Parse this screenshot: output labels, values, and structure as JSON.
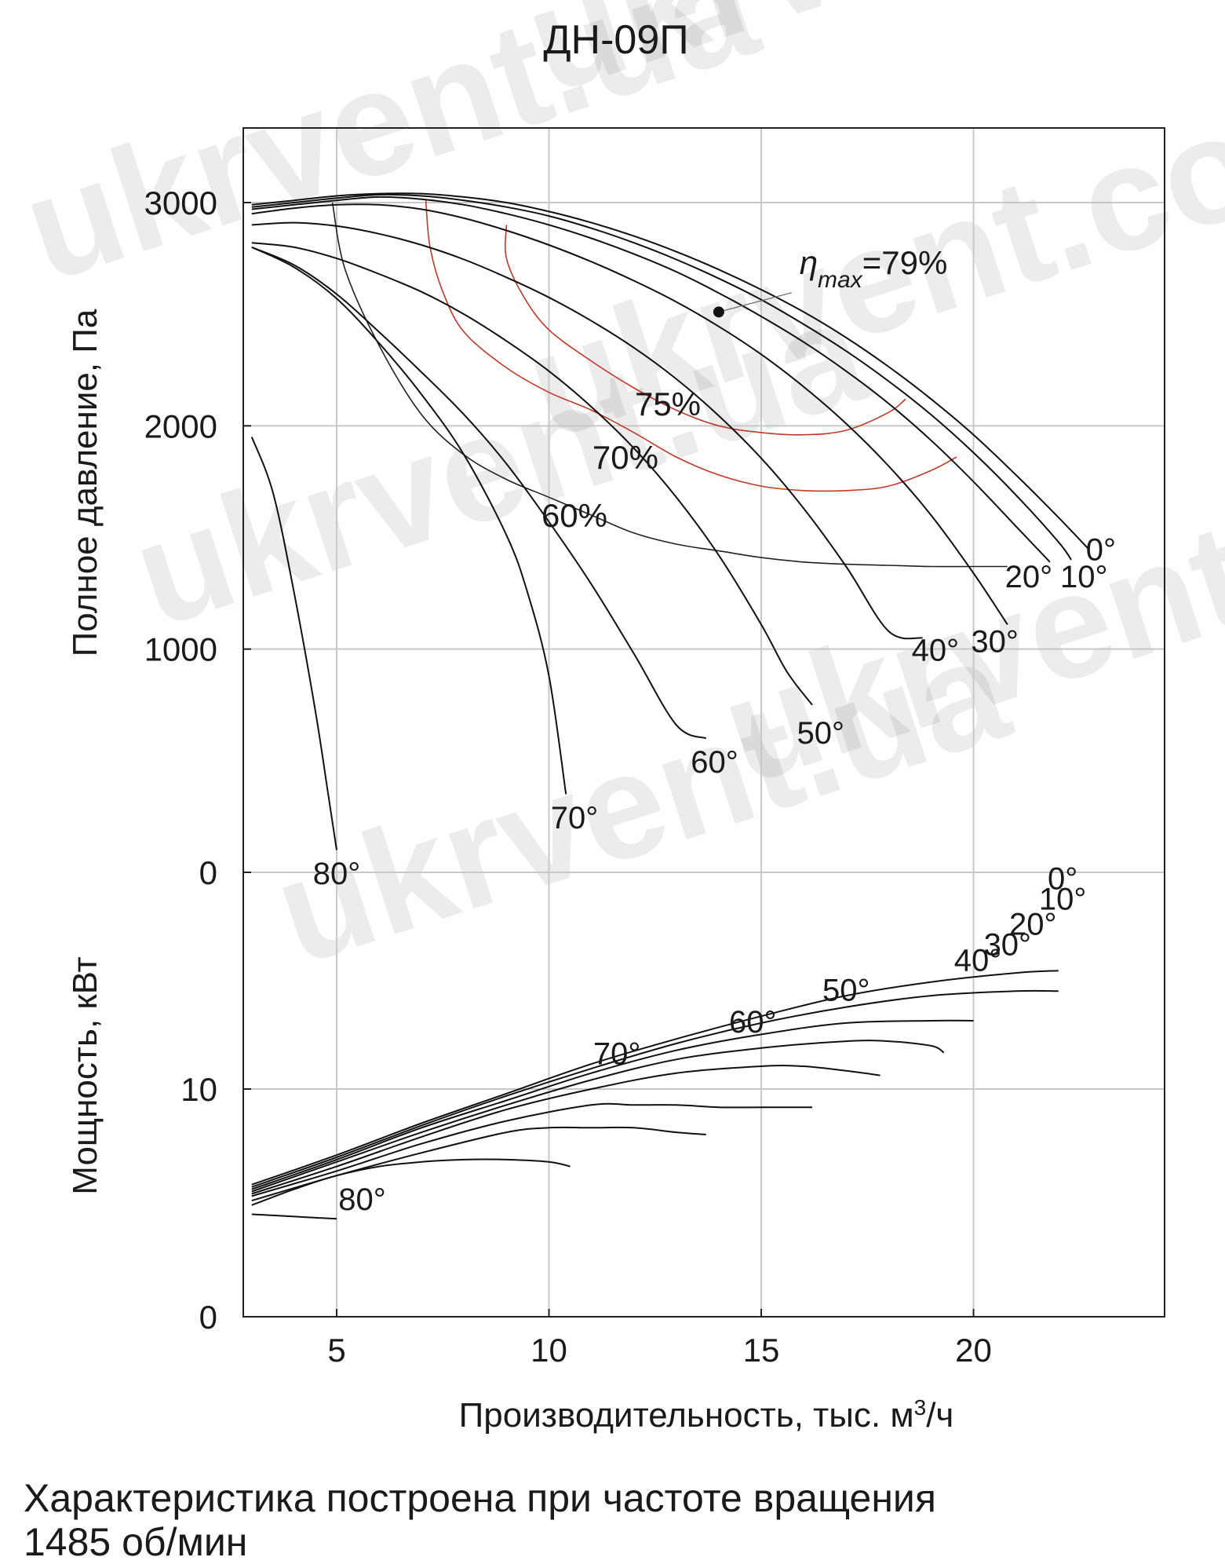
{
  "chart_data": {
    "type": "line",
    "title": "ДН-09П",
    "xlabel": "Производительность, тыс. м³/ч",
    "xlabel_parts": {
      "main": "Производительность, тыс. м",
      "sup": "3",
      "tail": "/ч"
    },
    "xlim": [
      2.8,
      24.5
    ],
    "x_ticks": [
      "5",
      "10",
      "15",
      "20"
    ],
    "x_tick_values": [
      5,
      10,
      15,
      20
    ],
    "grid": true,
    "pressure_panel": {
      "ylabel": "Полное давление, Па",
      "ylim": [
        0,
        3300
      ],
      "y_ticks": [
        "0",
        "1000",
        "2000",
        "3000"
      ],
      "y_tick_values": [
        0,
        1000,
        2000,
        3000
      ],
      "series": [
        {
          "name": "0°",
          "label_at": [
            23.0,
            1450
          ],
          "x": [
            3,
            4,
            5,
            6,
            7,
            8,
            9,
            10,
            11,
            12,
            13,
            14,
            15,
            16,
            17,
            18,
            19,
            20,
            21,
            22,
            22.7
          ],
          "y": [
            2990,
            3010,
            3030,
            3040,
            3040,
            3025,
            3000,
            2960,
            2910,
            2850,
            2780,
            2700,
            2610,
            2510,
            2395,
            2265,
            2120,
            1960,
            1780,
            1590,
            1450
          ]
        },
        {
          "name": "10°",
          "label_at": [
            22.6,
            1330
          ],
          "x": [
            3,
            4,
            5,
            6,
            7,
            8,
            9,
            10,
            11,
            12,
            13,
            14,
            15,
            16,
            17,
            18,
            19,
            20,
            21,
            22,
            22.3
          ],
          "y": [
            2980,
            3000,
            3020,
            3035,
            3030,
            3010,
            2980,
            2940,
            2885,
            2820,
            2745,
            2660,
            2565,
            2455,
            2335,
            2200,
            2050,
            1880,
            1690,
            1480,
            1400
          ]
        },
        {
          "name": "20°",
          "label_at": [
            21.3,
            1330
          ],
          "x": [
            3,
            4,
            5,
            6,
            7,
            8,
            9,
            10,
            11,
            12,
            13,
            14,
            15,
            16,
            17,
            18,
            19,
            20,
            21,
            21.8
          ],
          "y": [
            2970,
            2990,
            3010,
            3025,
            3015,
            2990,
            2950,
            2900,
            2840,
            2770,
            2690,
            2595,
            2490,
            2375,
            2245,
            2100,
            1935,
            1750,
            1550,
            1390
          ]
        },
        {
          "name": "30°",
          "label_at": [
            20.5,
            1040
          ],
          "x": [
            3,
            4,
            5,
            6,
            7,
            8,
            9,
            10,
            11,
            12,
            13,
            14,
            15,
            16,
            17,
            18,
            19,
            20,
            20.8
          ],
          "y": [
            2950,
            2975,
            2990,
            2990,
            2970,
            2930,
            2875,
            2810,
            2735,
            2650,
            2555,
            2445,
            2320,
            2175,
            2010,
            1820,
            1600,
            1340,
            1110
          ]
        },
        {
          "name": "40°",
          "label_at": [
            19.1,
            1000
          ],
          "x": [
            3,
            4,
            5,
            6,
            7,
            8,
            9,
            10,
            11,
            12,
            13,
            14,
            15,
            16,
            17,
            18,
            18.8
          ],
          "y": [
            2900,
            2910,
            2895,
            2860,
            2810,
            2745,
            2665,
            2575,
            2470,
            2350,
            2210,
            2045,
            1855,
            1630,
            1370,
            1080,
            1050
          ]
        },
        {
          "name": "50°",
          "label_at": [
            16.4,
            630
          ],
          "x": [
            3,
            4,
            5,
            6,
            7,
            8,
            9,
            10,
            11,
            12,
            13,
            14,
            15,
            15.6,
            16.2
          ],
          "y": [
            2820,
            2800,
            2750,
            2680,
            2600,
            2500,
            2380,
            2245,
            2085,
            1900,
            1680,
            1420,
            1110,
            900,
            750
          ]
        },
        {
          "name": "60°",
          "label_at": [
            13.9,
            500
          ],
          "x": [
            3,
            4,
            5,
            6,
            7,
            8,
            9,
            10,
            11,
            12,
            13,
            13.7
          ],
          "y": [
            2800,
            2720,
            2590,
            2420,
            2240,
            2050,
            1830,
            1570,
            1290,
            980,
            660,
            600
          ]
        },
        {
          "name": "70°",
          "label_at": [
            10.6,
            250
          ],
          "x": [
            3,
            4,
            5,
            6,
            7,
            8,
            9,
            9.5,
            10.0,
            10.4
          ],
          "y": [
            2800,
            2710,
            2570,
            2370,
            2140,
            1870,
            1510,
            1250,
            880,
            350
          ]
        },
        {
          "name": "80°",
          "label_at": [
            5.0,
            0
          ],
          "x": [
            3.0,
            3.5,
            4.0,
            4.5,
            4.8,
            5.0
          ],
          "y": [
            1950,
            1700,
            1250,
            720,
            350,
            100
          ]
        }
      ],
      "efficiency_lines": [
        {
          "name": "60%",
          "label_at": [
            10.6,
            1600
          ],
          "x": [
            4.9,
            5.2,
            6.0,
            7.0,
            8.0,
            9.0,
            10.0,
            11.0,
            12.0,
            13.0,
            14.0,
            15.0,
            16.0,
            17.0,
            18.0,
            19.0,
            20.0,
            20.8
          ],
          "y": [
            3000,
            2700,
            2360,
            2050,
            1870,
            1760,
            1680,
            1600,
            1520,
            1470,
            1440,
            1410,
            1390,
            1380,
            1375,
            1370,
            1370,
            1370
          ]
        },
        {
          "name": "70%",
          "label_at": [
            11.8,
            1860
          ],
          "x": [
            7.1,
            7.2,
            7.5,
            8.0,
            9.0,
            10.0,
            11.0,
            12.0,
            13.0,
            14.0,
            15.0,
            16.0,
            17.0,
            18.0,
            19.0,
            19.6
          ],
          "y": [
            3010,
            2800,
            2600,
            2420,
            2260,
            2150,
            2070,
            1970,
            1860,
            1780,
            1730,
            1710,
            1710,
            1730,
            1800,
            1860
          ]
        },
        {
          "name": "75%",
          "label_at": [
            12.8,
            2100
          ],
          "x": [
            9.0,
            9.0,
            9.4,
            10.0,
            11.0,
            12.0,
            13.0,
            14.0,
            15.0,
            16.0,
            17.0,
            18.0,
            18.4
          ],
          "y": [
            2900,
            2750,
            2580,
            2430,
            2290,
            2170,
            2070,
            2000,
            1970,
            1960,
            1980,
            2060,
            2120
          ]
        }
      ],
      "annotations": [
        {
          "text": "η",
          "sub": "max",
          "value": "=79%",
          "point": [
            14.0,
            2510
          ],
          "text_at": [
            15.9,
            2730
          ]
        }
      ]
    },
    "power_panel": {
      "ylabel": "Мощность, кВт",
      "ylim": [
        0,
        20
      ],
      "y_ticks": [
        "0",
        "10"
      ],
      "y_tick_values": [
        0,
        10
      ],
      "series": [
        {
          "name": "0°",
          "label_at": [
            22.1,
            19.3
          ],
          "x": [
            3,
            5,
            7,
            9,
            11,
            13,
            15,
            17,
            19,
            21,
            22.0
          ],
          "y": [
            5.8,
            7.1,
            8.5,
            9.8,
            11.1,
            12.2,
            13.2,
            14.1,
            14.7,
            15.1,
            15.2
          ]
        },
        {
          "name": "10°",
          "label_at": [
            22.1,
            18.4
          ],
          "x": [
            3,
            5,
            7,
            9,
            11,
            13,
            15,
            17,
            19,
            21,
            22.0
          ],
          "y": [
            5.7,
            7.0,
            8.4,
            9.7,
            10.9,
            12.0,
            12.9,
            13.6,
            14.1,
            14.3,
            14.3
          ]
        },
        {
          "name": "20°",
          "label_at": [
            21.4,
            17.3
          ],
          "x": [
            3,
            5,
            7,
            9,
            11,
            13,
            15,
            17,
            19,
            20.0
          ],
          "y": [
            5.6,
            6.9,
            8.3,
            9.5,
            10.7,
            11.7,
            12.4,
            12.9,
            13.0,
            13.0
          ]
        },
        {
          "name": "30°",
          "label_at": [
            20.8,
            16.4
          ],
          "x": [
            3,
            5,
            7,
            9,
            11,
            13,
            15,
            17,
            18,
            19,
            19.3
          ],
          "y": [
            5.5,
            6.8,
            8.1,
            9.3,
            10.4,
            11.3,
            11.8,
            12.1,
            12.1,
            11.9,
            11.6
          ]
        },
        {
          "name": "40°",
          "label_at": [
            20.1,
            15.7
          ],
          "x": [
            3,
            5,
            7,
            9,
            11,
            13,
            15,
            16,
            17,
            17.8
          ],
          "y": [
            5.4,
            6.6,
            7.9,
            9.1,
            10.0,
            10.7,
            11.0,
            11.0,
            10.8,
            10.6
          ]
        },
        {
          "name": "50°",
          "label_at": [
            17.0,
            14.4
          ],
          "x": [
            3,
            5,
            7,
            9,
            11,
            12,
            13,
            14,
            15,
            16.2
          ],
          "y": [
            5.3,
            6.4,
            7.6,
            8.6,
            9.3,
            9.3,
            9.3,
            9.2,
            9.2,
            9.2
          ]
        },
        {
          "name": "60°",
          "label_at": [
            14.8,
            13.0
          ],
          "x": [
            3,
            5,
            7,
            9,
            10,
            11,
            12,
            13,
            13.7
          ],
          "y": [
            5.1,
            6.2,
            7.2,
            8.1,
            8.3,
            8.3,
            8.3,
            8.1,
            8.0
          ]
        },
        {
          "name": "70°",
          "label_at": [
            11.6,
            11.6
          ],
          "x": [
            3,
            4,
            5,
            6,
            7,
            8,
            9,
            10,
            10.5
          ],
          "y": [
            4.9,
            5.6,
            6.2,
            6.6,
            6.8,
            6.9,
            6.9,
            6.8,
            6.6
          ]
        },
        {
          "name": "80°",
          "label_at": [
            5.6,
            5.2
          ],
          "x": [
            3.0,
            4.0,
            5.0
          ],
          "y": [
            4.5,
            4.4,
            4.3
          ]
        }
      ]
    }
  },
  "footnote": {
    "line1": "Характеристика построена при частоте вращения",
    "line2": "1485 об/мин"
  },
  "watermarks": [
    "ukrvent.ua",
    "ukrvent.com",
    "ukrvent.ua",
    "ukrvent.com",
    "ukrvent.ua",
    "ukrvent.com"
  ],
  "colors": {
    "curve": "#111111",
    "efficiency_outer": "#222222",
    "efficiency_inner": "#c0392b",
    "grid": "#c8c8c8",
    "frame": "#222222"
  }
}
